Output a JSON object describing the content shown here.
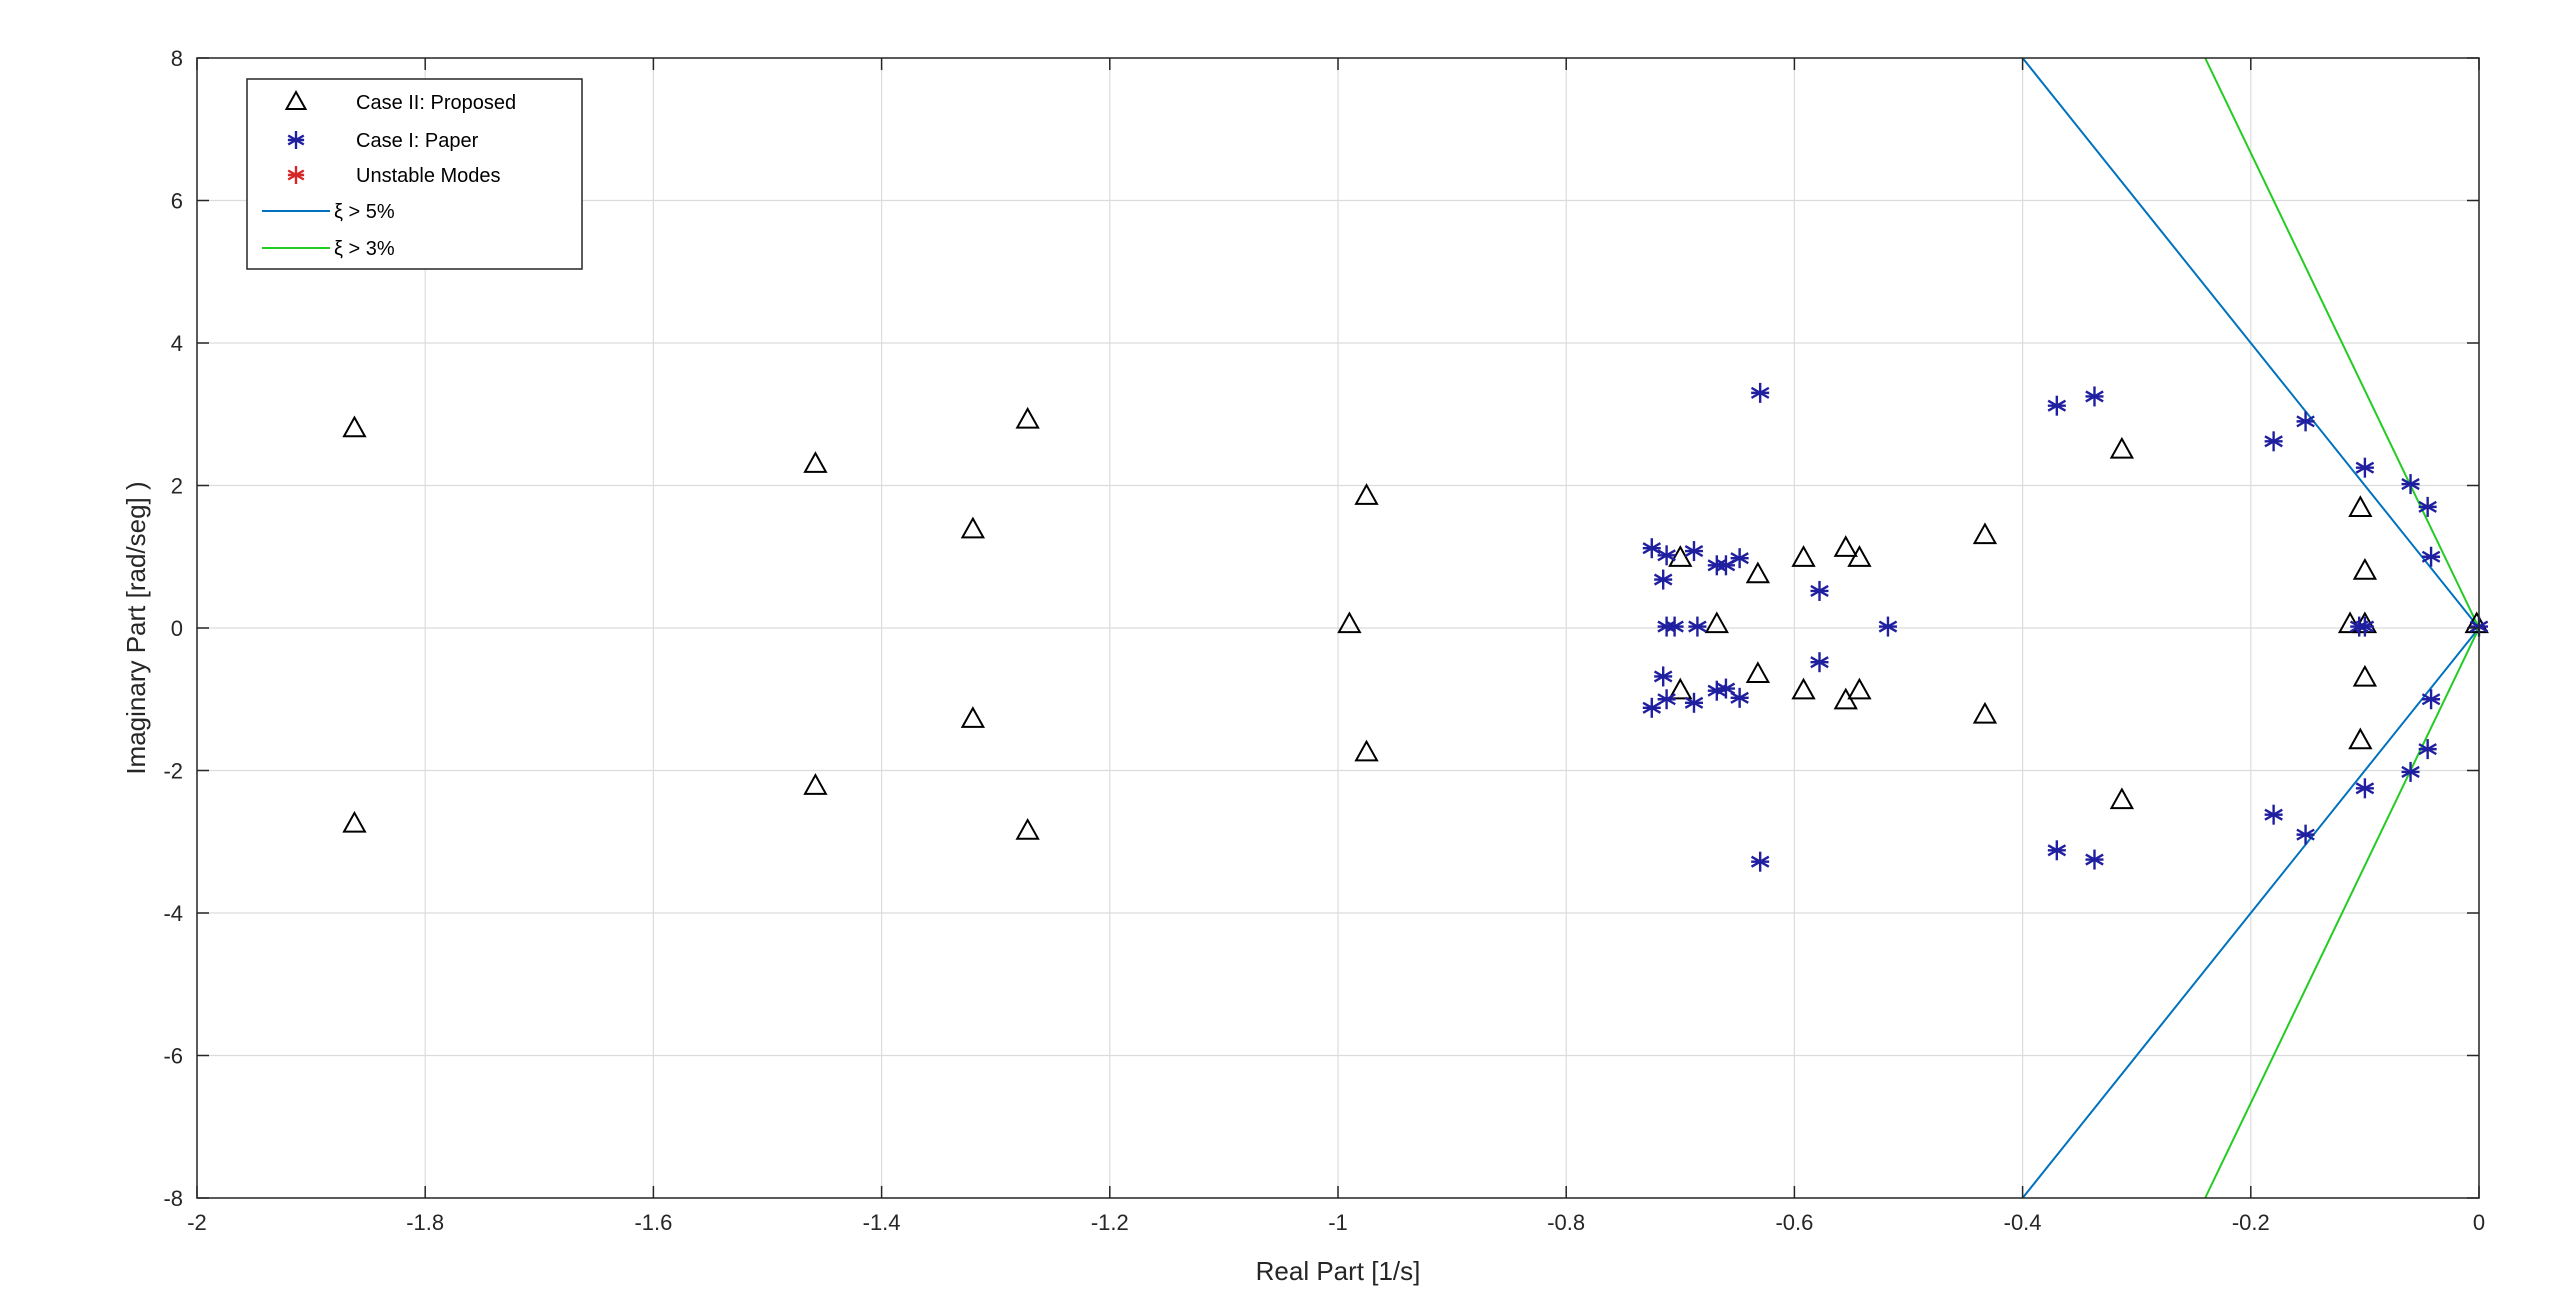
{
  "chart_data": {
    "type": "scatter",
    "xlabel": "Real Part [1/s]",
    "ylabel": "Imaginary Part [rad/seg] )",
    "xlim": [
      -2,
      0
    ],
    "ylim": [
      -8,
      8
    ],
    "xticks": [
      -2,
      -1.8,
      -1.6,
      -1.4,
      -1.2,
      -1,
      -0.8,
      -0.6,
      -0.4,
      -0.2,
      0
    ],
    "xtick_labels": [
      "-2",
      "-1.8",
      "-1.6",
      "-1.4",
      "-1.2",
      "-1",
      "-0.8",
      "-0.6",
      "-0.4",
      "-0.2",
      "0"
    ],
    "yticks": [
      -8,
      -6,
      -4,
      -2,
      0,
      2,
      4,
      6,
      8
    ],
    "ytick_labels": [
      "-8",
      "-6",
      "-4",
      "-2",
      "0",
      "2",
      "4",
      "6",
      "8"
    ],
    "grid": true,
    "legend_position": "top-left",
    "series": [
      {
        "name": "Case II: Proposed",
        "marker": "triangle",
        "color": "#000000",
        "points": [
          [
            -1.862,
            2.8
          ],
          [
            -1.862,
            -2.75
          ],
          [
            -1.458,
            2.3
          ],
          [
            -1.458,
            -2.22
          ],
          [
            -1.32,
            1.38
          ],
          [
            -1.32,
            -1.28
          ],
          [
            -1.272,
            2.92
          ],
          [
            -1.272,
            -2.85
          ],
          [
            -0.975,
            1.85
          ],
          [
            -0.975,
            -1.75
          ],
          [
            -0.99,
            0.05
          ],
          [
            -0.7,
            0.98
          ],
          [
            -0.7,
            -0.88
          ],
          [
            -0.668,
            0.05
          ],
          [
            -0.632,
            0.75
          ],
          [
            -0.632,
            -0.65
          ],
          [
            -0.592,
            0.98
          ],
          [
            -0.592,
            -0.88
          ],
          [
            -0.555,
            1.12
          ],
          [
            -0.555,
            -1.02
          ],
          [
            -0.543,
            0.98
          ],
          [
            -0.543,
            -0.88
          ],
          [
            -0.433,
            1.3
          ],
          [
            -0.433,
            -1.22
          ],
          [
            -0.313,
            2.5
          ],
          [
            -0.313,
            -2.42
          ],
          [
            -0.113,
            0.05
          ],
          [
            -0.104,
            1.68
          ],
          [
            -0.104,
            -1.58
          ],
          [
            -0.1,
            0.8
          ],
          [
            -0.1,
            -0.7
          ],
          [
            -0.1,
            0.05
          ],
          [
            -0.002,
            0.05
          ]
        ]
      },
      {
        "name": "Case I: Paper",
        "marker": "asterisk",
        "color": "#1f1fa0",
        "points": [
          [
            -0.63,
            3.3
          ],
          [
            -0.63,
            -3.28
          ],
          [
            -0.725,
            1.12
          ],
          [
            -0.725,
            -1.12
          ],
          [
            -0.715,
            0.68
          ],
          [
            -0.715,
            -0.68
          ],
          [
            -0.712,
            1.02
          ],
          [
            -0.712,
            -1.0
          ],
          [
            -0.712,
            0.02
          ],
          [
            -0.705,
            0.02
          ],
          [
            -0.688,
            1.08
          ],
          [
            -0.688,
            -1.05
          ],
          [
            -0.685,
            0.02
          ],
          [
            -0.668,
            0.88
          ],
          [
            -0.668,
            -0.88
          ],
          [
            -0.66,
            0.88
          ],
          [
            -0.66,
            -0.85
          ],
          [
            -0.648,
            0.98
          ],
          [
            -0.648,
            -0.98
          ],
          [
            -0.578,
            0.52
          ],
          [
            -0.578,
            -0.48
          ],
          [
            -0.518,
            0.02
          ],
          [
            -0.37,
            3.12
          ],
          [
            -0.37,
            -3.12
          ],
          [
            -0.337,
            3.25
          ],
          [
            -0.337,
            -3.25
          ],
          [
            -0.18,
            2.62
          ],
          [
            -0.18,
            -2.62
          ],
          [
            -0.152,
            2.9
          ],
          [
            -0.152,
            -2.9
          ],
          [
            -0.1,
            2.25
          ],
          [
            -0.1,
            -2.25
          ],
          [
            -0.1,
            0.02
          ],
          [
            -0.105,
            0.02
          ],
          [
            -0.06,
            2.02
          ],
          [
            -0.06,
            -2.02
          ],
          [
            -0.045,
            1.7
          ],
          [
            -0.045,
            -1.7
          ],
          [
            -0.042,
            1.0
          ],
          [
            -0.042,
            -1.0
          ],
          [
            0.0,
            0.02
          ]
        ]
      },
      {
        "name": "Unstable Modes",
        "marker": "asterisk",
        "color": "#d62728",
        "points": []
      },
      {
        "name": "ξ > 5%",
        "type": "line",
        "color": "#0072bd",
        "segments": [
          [
            [
              -0.4,
              8
            ],
            [
              0,
              0
            ]
          ],
          [
            [
              -0.4,
              -8
            ],
            [
              0,
              0
            ]
          ]
        ]
      },
      {
        "name": "ξ > 3%",
        "type": "line",
        "color": "#22cc22",
        "segments": [
          [
            [
              -0.24,
              8
            ],
            [
              0,
              0
            ]
          ],
          [
            [
              -0.24,
              -8
            ],
            [
              0,
              0
            ]
          ]
        ]
      }
    ]
  }
}
